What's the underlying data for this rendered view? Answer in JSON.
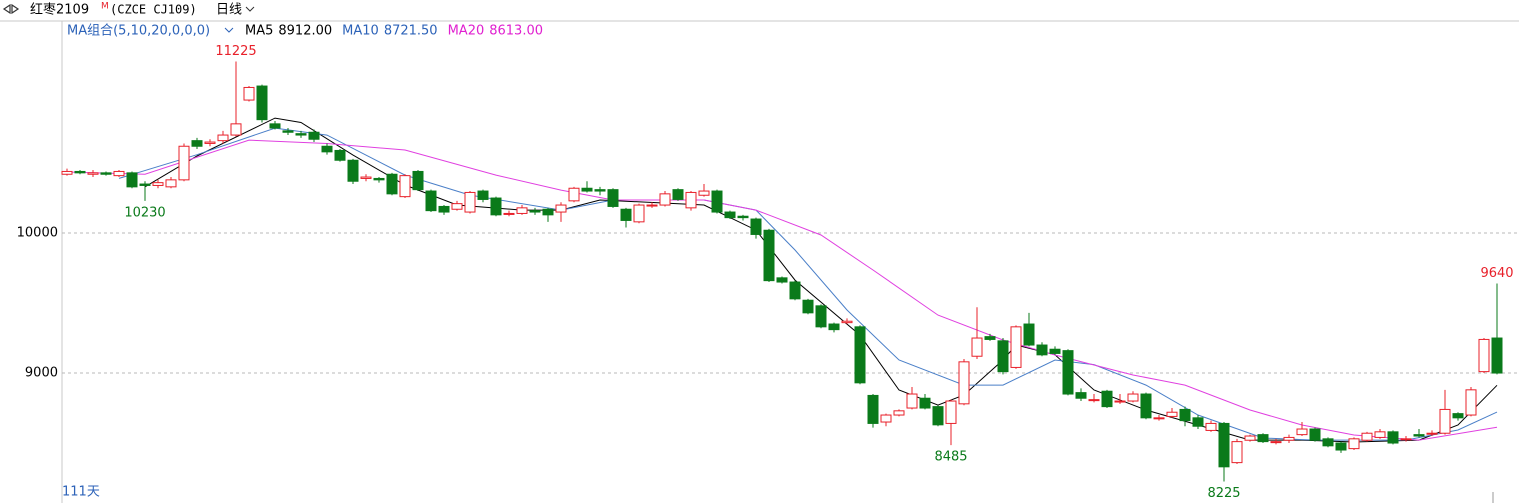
{
  "header": {
    "symbol": "红枣2109",
    "flag": "M",
    "code": "(CZCE CJ109)",
    "period": "日线",
    "ma_group": "MA组合(5,10,20,0,0,0)",
    "days": "111天"
  },
  "chart_data": {
    "type": "candlestick",
    "ylim": [
      8093,
      11379
    ],
    "yticks": [
      9000,
      10000
    ],
    "grid": true,
    "up_color": "#e8202a",
    "down_color": "#0a7a1a",
    "open": [
      10420,
      10440,
      10420,
      10430,
      10410,
      10430,
      10350,
      10340,
      10330,
      10380,
      10660,
      10640,
      10660,
      10700,
      10950,
      11050,
      10780,
      10730,
      10710,
      10720,
      10620,
      10590,
      10520,
      10390,
      10390,
      10420,
      10260,
      10440,
      10300,
      10190,
      10170,
      10150,
      10300,
      10250,
      10140,
      10140,
      10160,
      10170,
      10150,
      10230,
      10320,
      10310,
      10310,
      10170,
      10080,
      10200,
      10200,
      10310,
      10180,
      10270,
      10300,
      10150,
      10120,
      10100,
      10020,
      9680,
      9650,
      9520,
      9480,
      9350,
      9360,
      9330,
      8840,
      8650,
      8700,
      8750,
      8820,
      8760,
      8640,
      8780,
      9120,
      9260,
      9230,
      9040,
      9350,
      9200,
      9170,
      9160,
      8860,
      8810,
      8870,
      8800,
      8800,
      8850,
      8680,
      8690,
      8740,
      8680,
      8590,
      8640,
      8360,
      8520,
      8560,
      8510,
      8520,
      8560,
      8600,
      8530,
      8500,
      8460,
      8520,
      8540,
      8580,
      8530,
      8560,
      8570,
      8570,
      8710,
      8700,
      9010,
      9250
    ],
    "high": [
      10460,
      10450,
      10450,
      10440,
      10450,
      10440,
      10370,
      10380,
      10400,
      10640,
      10680,
      10670,
      10730,
      11225,
      11050,
      11060,
      10800,
      10750,
      10730,
      10740,
      10640,
      10600,
      10530,
      10420,
      10400,
      10430,
      10420,
      10450,
      10310,
      10200,
      10230,
      10300,
      10310,
      10260,
      10160,
      10200,
      10180,
      10180,
      10220,
      10330,
      10370,
      10330,
      10320,
      10180,
      10210,
      10220,
      10300,
      10320,
      10300,
      10350,
      10310,
      10160,
      10130,
      10110,
      10030,
      9690,
      9660,
      9530,
      9490,
      9360,
      9390,
      9340,
      8850,
      8710,
      8740,
      8900,
      8850,
      8770,
      8810,
      9100,
      9470,
      9280,
      9250,
      9340,
      9430,
      9220,
      9190,
      9170,
      8890,
      8850,
      8880,
      8850,
      8870,
      8860,
      8700,
      8750,
      8760,
      8700,
      8660,
      8650,
      8530,
      8560,
      8570,
      8530,
      8560,
      8650,
      8610,
      8540,
      8510,
      8540,
      8580,
      8600,
      8590,
      8550,
      8600,
      8590,
      8880,
      8720,
      8900,
      9250,
      9640
    ],
    "low": [
      10410,
      10420,
      10400,
      10410,
      10400,
      10320,
      10230,
      10320,
      10320,
      10370,
      10600,
      10620,
      10640,
      10690,
      10940,
      10790,
      10740,
      10700,
      10680,
      10650,
      10560,
      10510,
      10350,
      10370,
      10360,
      10270,
      10250,
      10300,
      10150,
      10130,
      10160,
      10140,
      10220,
      10120,
      10120,
      10130,
      10130,
      10080,
      10080,
      10220,
      10290,
      10270,
      10180,
      10040,
      10070,
      10180,
      10190,
      10230,
      10160,
      10260,
      10140,
      10100,
      10090,
      9960,
      9650,
      9640,
      9520,
      9420,
      9320,
      9290,
      9350,
      8920,
      8610,
      8620,
      8690,
      8740,
      8740,
      8620,
      8485,
      8770,
      9100,
      9230,
      8990,
      9030,
      9190,
      9120,
      9130,
      8840,
      8800,
      8790,
      8750,
      8780,
      8790,
      8670,
      8660,
      8680,
      8620,
      8600,
      8580,
      8225,
      8350,
      8510,
      8500,
      8490,
      8500,
      8550,
      8510,
      8470,
      8430,
      8450,
      8510,
      8530,
      8490,
      8510,
      8540,
      8550,
      8560,
      8660,
      8690,
      9000,
      8990
    ],
    "close": [
      10440,
      10430,
      10430,
      10420,
      10440,
      10330,
      10340,
      10360,
      10380,
      10620,
      10620,
      10650,
      10700,
      10780,
      11040,
      10810,
      10750,
      10720,
      10700,
      10670,
      10580,
      10520,
      10370,
      10400,
      10380,
      10280,
      10410,
      10310,
      10160,
      10150,
      10210,
      10290,
      10240,
      10130,
      10140,
      10180,
      10150,
      10130,
      10200,
      10320,
      10300,
      10300,
      10190,
      10090,
      10200,
      10200,
      10280,
      10240,
      10290,
      10300,
      10150,
      10110,
      10110,
      9990,
      9660,
      9650,
      9530,
      9430,
      9330,
      9310,
      9370,
      8930,
      8640,
      8700,
      8730,
      8850,
      8750,
      8630,
      8800,
      9080,
      9250,
      9240,
      9010,
      9330,
      9200,
      9130,
      9140,
      8850,
      8820,
      8810,
      8760,
      8800,
      8850,
      8680,
      8680,
      8720,
      8660,
      8620,
      8640,
      8330,
      8510,
      8550,
      8510,
      8510,
      8540,
      8600,
      8520,
      8480,
      8450,
      8530,
      8570,
      8580,
      8500,
      8530,
      8550,
      8570,
      8740,
      8680,
      8880,
      9240,
      9000
    ],
    "series": [
      {
        "name": "MA5",
        "legend_value": "8912.00",
        "color": "#000000",
        "legend_color": "#000000",
        "x": [
          6,
          10,
          16,
          18,
          22,
          26,
          30,
          35,
          38,
          41,
          49,
          53,
          56,
          61,
          64,
          67,
          69,
          72,
          73,
          76,
          79,
          83,
          87,
          91,
          95,
          99,
          104,
          107,
          110
        ],
        "values": [
          10330,
          10550,
          10821,
          10790,
          10557,
          10343,
          10200,
          10164,
          10164,
          10236,
          10200,
          10021,
          9664,
          9271,
          8879,
          8771,
          8843,
          9093,
          9200,
          9130,
          8879,
          8736,
          8629,
          8521,
          8521,
          8507,
          8521,
          8629,
          8912
        ]
      },
      {
        "name": "MA10",
        "legend_value": "8721.50",
        "color": "#4a7fc8",
        "legend_color": "#2c62b8",
        "x": [
          4,
          10,
          16,
          20,
          26,
          31,
          38,
          42,
          49,
          53,
          56,
          60,
          64,
          69,
          72,
          76,
          79,
          83,
          87,
          92,
          96,
          103,
          107,
          110
        ],
        "values": [
          10390,
          10560,
          10750,
          10700,
          10414,
          10271,
          10164,
          10236,
          10236,
          10164,
          9879,
          9450,
          9093,
          8914,
          8914,
          9093,
          9060,
          8914,
          8700,
          8536,
          8521,
          8521,
          8593,
          8721
        ]
      },
      {
        "name": "MA20",
        "legend_value": "8613.00",
        "color": "#e040e0",
        "legend_color": "#e020d0",
        "x": [
          0,
          6,
          14,
          20,
          26,
          33,
          38,
          42,
          49,
          53,
          58,
          62,
          67,
          72,
          76,
          82,
          86,
          91,
          95,
          99,
          104,
          110
        ],
        "values": [
          10436,
          10420,
          10664,
          10640,
          10593,
          10414,
          10307,
          10236,
          10236,
          10164,
          9986,
          9736,
          9414,
          9236,
          9129,
          8986,
          8914,
          8736,
          8629,
          8557,
          8521,
          8613
        ]
      }
    ],
    "annotations": [
      {
        "x": 13,
        "value": 11225,
        "kind": "high"
      },
      {
        "x": 6,
        "value": 10230,
        "kind": "low"
      },
      {
        "x": 68,
        "value": 8485,
        "kind": "low"
      },
      {
        "x": 89,
        "value": 8225,
        "kind": "low"
      },
      {
        "x": 110,
        "value": 9640,
        "kind": "high"
      }
    ]
  }
}
